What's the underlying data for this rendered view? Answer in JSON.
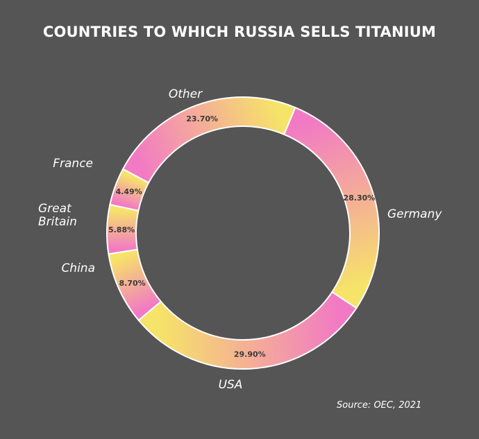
{
  "chart_data": {
    "type": "pie",
    "donut": true,
    "title": "COUNTRIES TO WHICH RUSSIA SELLS TITANIUM",
    "source": "Source: OEC, 2021",
    "slices": [
      {
        "name": "Germany",
        "value": 28.3,
        "label": "28.30%"
      },
      {
        "name": "USA",
        "value": 29.9,
        "label": "29.90%"
      },
      {
        "name": "China",
        "value": 8.7,
        "label": "8.70%"
      },
      {
        "name": "Great Britain",
        "value": 5.88,
        "label": "5.88%"
      },
      {
        "name": "France",
        "value": 4.49,
        "label": "4.49%"
      },
      {
        "name": "Other",
        "value": 23.7,
        "label": "23.70%"
      }
    ],
    "colors": {
      "gradient_start": "#f27ac4",
      "gradient_end": "#f6e468",
      "background": "#555555",
      "stroke": "#ffffff"
    }
  }
}
